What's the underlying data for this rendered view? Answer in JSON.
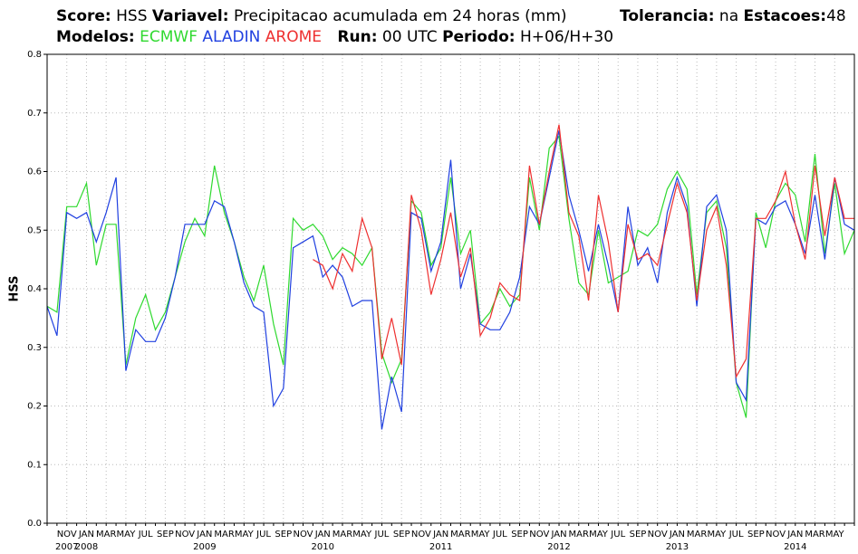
{
  "chart_data": {
    "type": "line",
    "header": {
      "score_label": "Score:",
      "score": "HSS",
      "variable_label": "Variavel:",
      "variable": "Precipitacao acumulada em 24 horas (mm)",
      "tolerance_label": "Tolerancia:",
      "tolerance": "na",
      "stations_label": "Estacoes:",
      "stations": 48,
      "models_label": "Modelos:",
      "run_label": "Run:",
      "run": "00 UTC",
      "period_label": "Periodo:",
      "period": "H+06/H+30"
    },
    "ylabel": "HSS",
    "categories": [
      null,
      null,
      "NOV",
      null,
      "JAN",
      null,
      "MAR",
      null,
      "MAY",
      null,
      "JUL",
      null,
      "SEP",
      null,
      "NOV",
      null,
      "JAN",
      null,
      "MAR",
      null,
      "MAY",
      null,
      "JUL",
      null,
      "SEP",
      null,
      "NOV",
      null,
      "JAN",
      null,
      "MAR",
      null,
      "MAY",
      null,
      "JUL",
      null,
      "SEP",
      null,
      "NOV",
      null,
      "JAN",
      null,
      "MAR",
      null,
      "MAY",
      null,
      "JUL",
      null,
      "SEP",
      null,
      "NOV",
      null,
      "JAN",
      null,
      "MAR",
      null,
      "MAY",
      null,
      "JUL",
      null,
      "SEP",
      null,
      "NOV",
      null,
      "JAN",
      null,
      "MAR",
      null,
      "MAY",
      null,
      "JUL",
      null,
      "SEP",
      null,
      "NOV",
      null,
      "JAN",
      null,
      "MAR",
      null,
      "MAY",
      null,
      null
    ],
    "year_labels": [
      null,
      null,
      "2007",
      null,
      "2008",
      null,
      null,
      null,
      null,
      null,
      null,
      null,
      null,
      null,
      null,
      null,
      "2009",
      null,
      null,
      null,
      null,
      null,
      null,
      null,
      null,
      null,
      null,
      null,
      "2010",
      null,
      null,
      null,
      null,
      null,
      null,
      null,
      null,
      null,
      null,
      null,
      "2011",
      null,
      null,
      null,
      null,
      null,
      null,
      null,
      null,
      null,
      null,
      null,
      "2012",
      null,
      null,
      null,
      null,
      null,
      null,
      null,
      null,
      null,
      null,
      null,
      "2013",
      null,
      null,
      null,
      null,
      null,
      null,
      null,
      null,
      null,
      null,
      null,
      "2014",
      null,
      null,
      null,
      null,
      null,
      null
    ],
    "series": [
      {
        "name": "ECMWF",
        "color": "#2fd92f",
        "values": [
          0.37,
          0.36,
          0.54,
          0.54,
          0.58,
          0.44,
          0.51,
          0.51,
          0.27,
          0.35,
          0.39,
          0.33,
          0.36,
          0.42,
          0.48,
          0.52,
          0.49,
          0.61,
          0.53,
          0.48,
          0.42,
          0.38,
          0.44,
          0.34,
          0.27,
          0.52,
          0.5,
          0.51,
          0.49,
          0.45,
          0.47,
          0.46,
          0.44,
          0.47,
          0.29,
          0.24,
          0.28,
          0.55,
          0.53,
          0.44,
          0.47,
          0.59,
          0.46,
          0.5,
          0.34,
          0.36,
          0.4,
          0.37,
          0.39,
          0.59,
          0.5,
          0.64,
          0.66,
          0.52,
          0.41,
          0.39,
          0.5,
          0.41,
          0.42,
          0.43,
          0.5,
          0.49,
          0.51,
          0.57,
          0.6,
          0.57,
          0.39,
          0.53,
          0.55,
          0.47,
          0.24,
          0.18,
          0.53,
          0.47,
          0.55,
          0.58,
          0.56,
          0.48,
          0.63,
          0.46,
          0.58,
          0.46,
          0.5
        ]
      },
      {
        "name": "ALADIN",
        "color": "#2040e0",
        "values": [
          0.37,
          0.32,
          0.53,
          0.52,
          0.53,
          0.48,
          0.53,
          0.59,
          0.26,
          0.33,
          0.31,
          0.31,
          0.35,
          0.42,
          0.51,
          0.51,
          0.51,
          0.55,
          0.54,
          0.48,
          0.41,
          0.37,
          0.36,
          0.2,
          0.23,
          0.47,
          0.48,
          0.49,
          0.42,
          0.44,
          0.42,
          0.37,
          0.38,
          0.38,
          0.16,
          0.25,
          0.19,
          0.53,
          0.52,
          0.43,
          0.48,
          0.62,
          0.4,
          0.46,
          0.34,
          0.33,
          0.33,
          0.36,
          0.42,
          0.54,
          0.51,
          0.59,
          0.67,
          0.56,
          0.5,
          0.43,
          0.51,
          0.44,
          0.36,
          0.54,
          0.44,
          0.47,
          0.41,
          0.53,
          0.59,
          0.54,
          0.37,
          0.54,
          0.56,
          0.5,
          0.24,
          0.21,
          0.52,
          0.51,
          0.54,
          0.55,
          0.51,
          0.46,
          0.56,
          0.45,
          0.59,
          0.51,
          0.5
        ]
      },
      {
        "name": "AROME",
        "color": "#ee3030",
        "values": [
          null,
          null,
          null,
          null,
          null,
          null,
          null,
          null,
          null,
          null,
          null,
          null,
          null,
          null,
          null,
          null,
          null,
          null,
          null,
          null,
          null,
          null,
          null,
          null,
          null,
          null,
          null,
          0.45,
          0.44,
          0.4,
          0.46,
          0.43,
          0.52,
          0.47,
          0.28,
          0.35,
          0.27,
          0.56,
          0.5,
          0.39,
          0.45,
          0.53,
          0.42,
          0.47,
          0.32,
          0.35,
          0.41,
          0.39,
          0.38,
          0.61,
          0.51,
          0.6,
          0.68,
          0.53,
          0.49,
          0.38,
          0.56,
          0.48,
          0.36,
          0.51,
          0.45,
          0.46,
          0.44,
          0.51,
          0.58,
          0.53,
          0.38,
          0.5,
          0.54,
          0.44,
          0.25,
          0.28,
          0.52,
          0.52,
          0.55,
          0.6,
          0.51,
          0.45,
          0.61,
          0.49,
          0.59,
          0.52,
          0.52
        ]
      }
    ],
    "ylim": [
      0,
      0.8
    ],
    "yticks": [
      {
        "value": 0,
        "label": "0.0"
      },
      0.1,
      0.2,
      0.3,
      0.4,
      0.5,
      0.6,
      0.7,
      0.8
    ],
    "grid": true
  }
}
